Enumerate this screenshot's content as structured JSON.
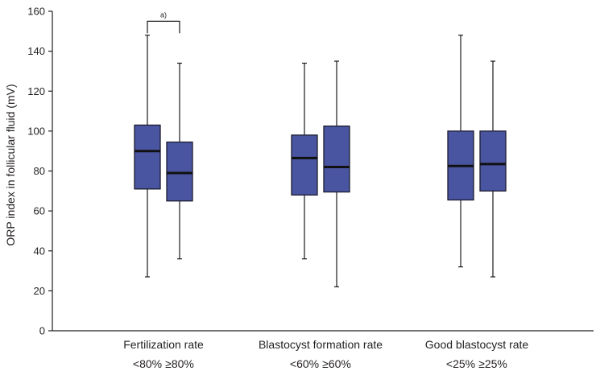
{
  "chart_data": {
    "type": "boxplot",
    "ylabel": "ORP index in follicular fluid (mV)",
    "xlabel": "",
    "ylim": [
      0,
      160
    ],
    "yticks": [
      0,
      20,
      40,
      60,
      80,
      100,
      120,
      140,
      160
    ],
    "colors": {
      "box_fill": "#4a55a2",
      "box_stroke": "#1c1c2e",
      "median": "#111111",
      "axis": "#231f20"
    },
    "groups": [
      {
        "name": "Fertilization rate",
        "boxes": [
          {
            "label": "<80%",
            "min": 27,
            "q1": 71,
            "median": 90,
            "q3": 103,
            "max": 148
          },
          {
            "label": "≥80%",
            "min": 36,
            "q1": 65,
            "median": 79,
            "q3": 94.5,
            "max": 134
          }
        ]
      },
      {
        "name": "Blastocyst formation rate",
        "boxes": [
          {
            "label": "<60%",
            "min": 36,
            "q1": 68,
            "median": 86.5,
            "q3": 98,
            "max": 134
          },
          {
            "label": "≥60%",
            "min": 22,
            "q1": 69.5,
            "median": 82,
            "q3": 102.5,
            "max": 135
          }
        ]
      },
      {
        "name": "Good blastocyst rate",
        "boxes": [
          {
            "label": "<25%",
            "min": 32,
            "q1": 65.5,
            "median": 82.5,
            "q3": 100,
            "max": 148
          },
          {
            "label": "≥25%",
            "min": 27,
            "q1": 70,
            "median": 83.5,
            "q3": 100,
            "max": 135
          }
        ]
      }
    ],
    "annotations": [
      {
        "text": "a)",
        "group": 0,
        "between_boxes": [
          0,
          1
        ],
        "y": 155
      }
    ]
  }
}
